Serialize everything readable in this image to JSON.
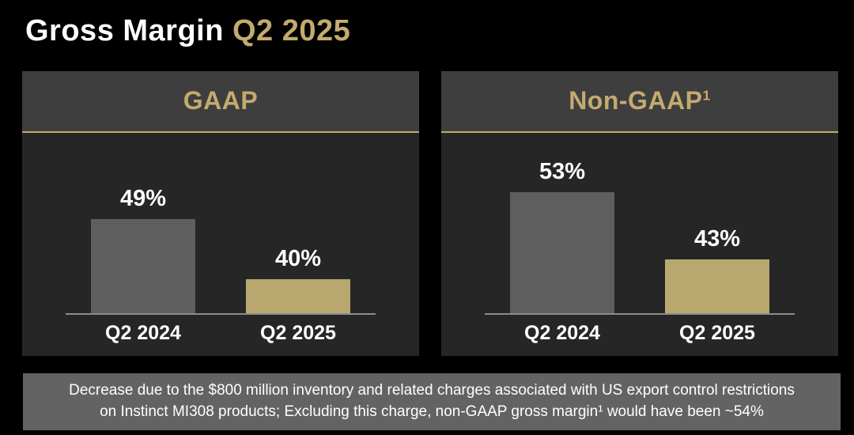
{
  "page": {
    "title": {
      "main": "Gross Margin ",
      "highlight": "Q2 2025"
    }
  },
  "colors": {
    "background": "#000000",
    "accent_gold": "#C3AA6E",
    "bar_gold": "#B9A770",
    "bar_gray": "#5E5E5E",
    "panel_header_bg": "#3E3E3E",
    "panel_body_bg": "#262626",
    "footnote_bg": "#636363",
    "axis_gray": "#8C8C8C",
    "text_white": "#FFFFFF"
  },
  "chart_data": [
    {
      "type": "bar",
      "title": "GAAP",
      "title_superscript": "",
      "categories": [
        "Q2 2024",
        "Q2 2025"
      ],
      "values": [
        49,
        40
      ],
      "labels": [
        "49%",
        "40%"
      ],
      "unit": "%",
      "ylim": [
        35,
        62
      ],
      "grid": false,
      "legend": "none",
      "bar_colors": [
        "#5E5E5E",
        "#B9A770"
      ]
    },
    {
      "type": "bar",
      "title": "Non-GAAP",
      "title_superscript": "1",
      "categories": [
        "Q2 2024",
        "Q2 2025"
      ],
      "values": [
        53,
        43
      ],
      "labels": [
        "53%",
        "43%"
      ],
      "unit": "%",
      "ylim": [
        35,
        62
      ],
      "grid": false,
      "legend": "none",
      "bar_colors": [
        "#5E5E5E",
        "#B9A770"
      ]
    }
  ],
  "footnote": {
    "text": "Decrease due to the $800 million inventory and related charges associated with US export control restrictions on Instinct MI308 products; Excluding this charge, non-GAAP gross margin¹ would have been ~54%"
  }
}
